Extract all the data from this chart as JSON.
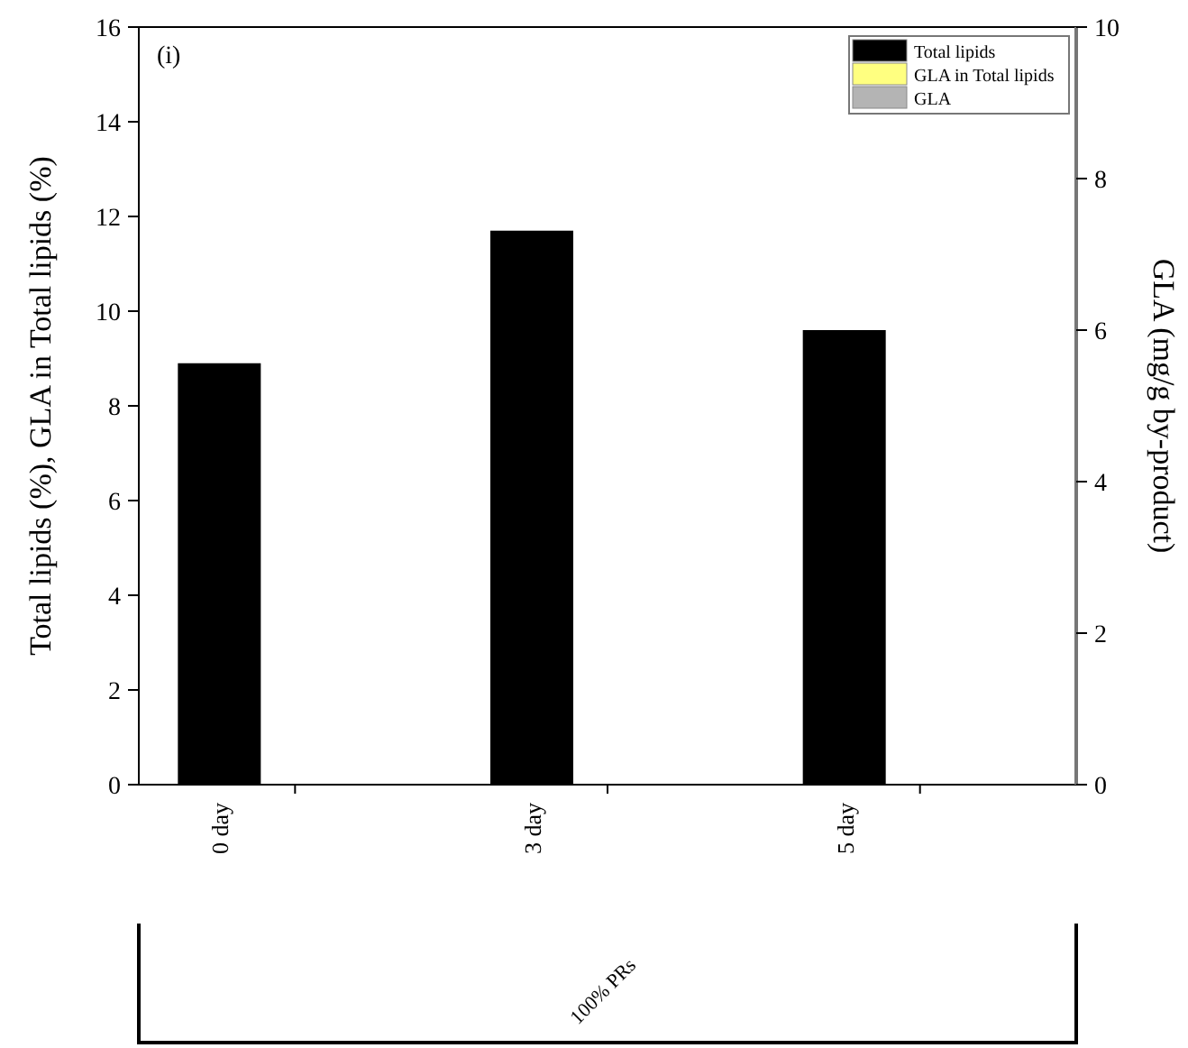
{
  "chart_data": {
    "type": "bar",
    "categories": [
      "0 day",
      "3 day",
      "5 day"
    ],
    "series": [
      {
        "name": "Total lipids",
        "color": "#000000",
        "values": [
          8.9,
          11.7,
          9.6
        ]
      },
      {
        "name": "GLA in Total lipids",
        "color": "#ffff80",
        "values": [
          0,
          0,
          0
        ]
      },
      {
        "name": "GLA",
        "color": "#b4b4b4",
        "values": [
          0,
          0,
          0
        ]
      }
    ],
    "ylim": [
      0,
      16
    ],
    "yticks": [
      0,
      2,
      4,
      6,
      8,
      10,
      12,
      14,
      16
    ],
    "y2lim": [
      0,
      10
    ],
    "y2ticks": [
      0,
      2,
      4,
      6,
      8,
      10
    ],
    "ylabel": "Total lipids (%), GLA in Total lipids (%)",
    "y2label": "GLA (mg/g by-product)",
    "legend": "top right",
    "annotations": [
      "(i)",
      "100% PRs"
    ]
  }
}
